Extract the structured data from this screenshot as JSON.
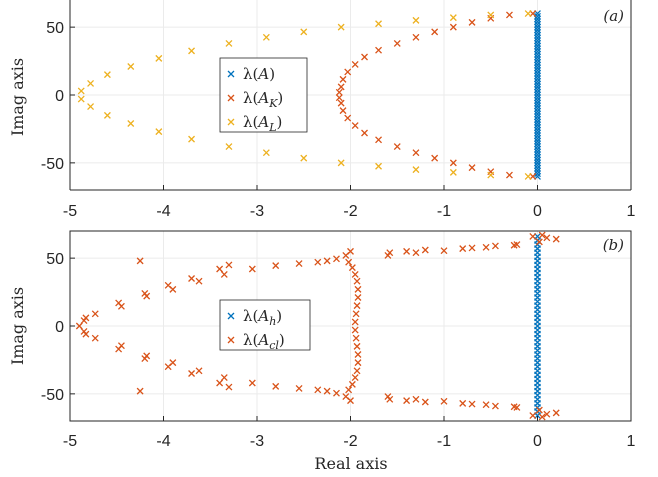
{
  "chart_data": [
    {
      "type": "scatter",
      "panel_label": "(a)",
      "xlabel": "",
      "ylabel": "Imag axis",
      "xlim": [
        -5,
        1
      ],
      "ylim": [
        -70,
        70
      ],
      "xticks": [
        -5,
        -4,
        -3,
        -2,
        -1,
        0,
        1
      ],
      "yticks": [
        -50,
        0,
        50
      ],
      "xtick_labels": [
        "-5",
        "-4",
        "-3",
        "-2",
        "-1",
        "0",
        "1"
      ],
      "ytick_labels": [
        "-50",
        "0",
        "50"
      ],
      "grid": true,
      "legend_position": "center-left",
      "marker": "x",
      "series": [
        {
          "name": "λ(A)",
          "color": "#0072BD",
          "points": [
            [
              0,
              -60
            ],
            [
              0,
              -58
            ],
            [
              0,
              -56
            ],
            [
              0,
              -54
            ],
            [
              0,
              -52
            ],
            [
              0,
              -50
            ],
            [
              0,
              -48
            ],
            [
              0,
              -46
            ],
            [
              0,
              -44
            ],
            [
              0,
              -42
            ],
            [
              0,
              -40
            ],
            [
              0,
              -38
            ],
            [
              0,
              -36
            ],
            [
              0,
              -34
            ],
            [
              0,
              -32
            ],
            [
              0,
              -30
            ],
            [
              0,
              -28
            ],
            [
              0,
              -26
            ],
            [
              0,
              -24
            ],
            [
              0,
              -22
            ],
            [
              0,
              -20
            ],
            [
              0,
              -18
            ],
            [
              0,
              -16
            ],
            [
              0,
              -14
            ],
            [
              0,
              -12
            ],
            [
              0,
              -10
            ],
            [
              0,
              -8
            ],
            [
              0,
              -6
            ],
            [
              0,
              -4
            ],
            [
              0,
              -2
            ],
            [
              0,
              0
            ],
            [
              0,
              2
            ],
            [
              0,
              4
            ],
            [
              0,
              6
            ],
            [
              0,
              8
            ],
            [
              0,
              10
            ],
            [
              0,
              12
            ],
            [
              0,
              14
            ],
            [
              0,
              16
            ],
            [
              0,
              18
            ],
            [
              0,
              20
            ],
            [
              0,
              22
            ],
            [
              0,
              24
            ],
            [
              0,
              26
            ],
            [
              0,
              28
            ],
            [
              0,
              30
            ],
            [
              0,
              32
            ],
            [
              0,
              34
            ],
            [
              0,
              36
            ],
            [
              0,
              38
            ],
            [
              0,
              40
            ],
            [
              0,
              42
            ],
            [
              0,
              44
            ],
            [
              0,
              46
            ],
            [
              0,
              48
            ],
            [
              0,
              50
            ],
            [
              0,
              52
            ],
            [
              0,
              54
            ],
            [
              0,
              56
            ],
            [
              0,
              58
            ],
            [
              0,
              60
            ]
          ]
        },
        {
          "name": "λ(A_K)",
          "color": "#D95319",
          "points": [
            [
              -0.05,
              60
            ],
            [
              -0.3,
              59
            ],
            [
              -0.5,
              56.5
            ],
            [
              -0.7,
              53.5
            ],
            [
              -0.9,
              50
            ],
            [
              -1.1,
              46.5
            ],
            [
              -1.3,
              42.5
            ],
            [
              -1.5,
              38
            ],
            [
              -1.7,
              33
            ],
            [
              -1.85,
              28
            ],
            [
              -1.95,
              22.5
            ],
            [
              -2.03,
              17
            ],
            [
              -2.08,
              11.5
            ],
            [
              -2.1,
              6
            ],
            [
              -2.12,
              2
            ],
            [
              -2.12,
              -2
            ],
            [
              -2.1,
              -6
            ],
            [
              -2.08,
              -11.5
            ],
            [
              -2.03,
              -17
            ],
            [
              -1.95,
              -22.5
            ],
            [
              -1.85,
              -28
            ],
            [
              -1.7,
              -33
            ],
            [
              -1.5,
              -38
            ],
            [
              -1.3,
              -42.5
            ],
            [
              -1.1,
              -46.5
            ],
            [
              -0.9,
              -50
            ],
            [
              -0.7,
              -53.5
            ],
            [
              -0.5,
              -56.5
            ],
            [
              -0.3,
              -59
            ],
            [
              -0.05,
              -60
            ]
          ]
        },
        {
          "name": "λ(A_L)",
          "color": "#EDB120",
          "points": [
            [
              -0.1,
              60
            ],
            [
              -0.5,
              59
            ],
            [
              -0.9,
              57
            ],
            [
              -1.3,
              55
            ],
            [
              -1.7,
              52.5
            ],
            [
              -2.1,
              50
            ],
            [
              -2.5,
              46.5
            ],
            [
              -2.9,
              42.5
            ],
            [
              -3.3,
              38
            ],
            [
              -3.7,
              32.5
            ],
            [
              -4.05,
              27
            ],
            [
              -4.35,
              21
            ],
            [
              -4.6,
              15
            ],
            [
              -4.78,
              8.5
            ],
            [
              -4.88,
              3
            ],
            [
              -4.88,
              -3
            ],
            [
              -4.78,
              -8.5
            ],
            [
              -4.6,
              -15
            ],
            [
              -4.35,
              -21
            ],
            [
              -4.05,
              -27
            ],
            [
              -3.7,
              -32.5
            ],
            [
              -3.3,
              -38
            ],
            [
              -2.9,
              -42.5
            ],
            [
              -2.5,
              -46.5
            ],
            [
              -2.1,
              -50
            ],
            [
              -1.7,
              -52.5
            ],
            [
              -1.3,
              -55
            ],
            [
              -0.9,
              -57
            ],
            [
              -0.5,
              -59
            ],
            [
              -0.1,
              -60
            ]
          ]
        }
      ]
    },
    {
      "type": "scatter",
      "panel_label": "(b)",
      "xlabel": "Real axis",
      "ylabel": "Imag axis",
      "xlim": [
        -5,
        1
      ],
      "ylim": [
        -70,
        70
      ],
      "xticks": [
        -5,
        -4,
        -3,
        -2,
        -1,
        0,
        1
      ],
      "yticks": [
        -50,
        0,
        50
      ],
      "xtick_labels": [
        "-5",
        "-4",
        "-3",
        "-2",
        "-1",
        "0",
        "1"
      ],
      "ytick_labels": [
        "-50",
        "0",
        "50"
      ],
      "grid": true,
      "legend_position": "center-left",
      "marker": "x",
      "series": [
        {
          "name": "λ(A_h)",
          "color": "#0072BD",
          "points": [
            [
              0,
              -66
            ],
            [
              0,
              -63
            ],
            [
              0,
              -60
            ],
            [
              0,
              -57
            ],
            [
              0,
              -54
            ],
            [
              0,
              -51
            ],
            [
              0,
              -48
            ],
            [
              0,
              -45
            ],
            [
              0,
              -42
            ],
            [
              0,
              -39
            ],
            [
              0,
              -36
            ],
            [
              0,
              -33
            ],
            [
              0,
              -30
            ],
            [
              0,
              -27
            ],
            [
              0,
              -24
            ],
            [
              0,
              -21
            ],
            [
              0,
              -18
            ],
            [
              0,
              -15
            ],
            [
              0,
              -12
            ],
            [
              0,
              -9
            ],
            [
              0,
              -6
            ],
            [
              0,
              -3
            ],
            [
              0,
              0
            ],
            [
              0,
              3
            ],
            [
              0,
              6
            ],
            [
              0,
              9
            ],
            [
              0,
              12
            ],
            [
              0,
              15
            ],
            [
              0,
              18
            ],
            [
              0,
              21
            ],
            [
              0,
              24
            ],
            [
              0,
              27
            ],
            [
              0,
              30
            ],
            [
              0,
              33
            ],
            [
              0,
              36
            ],
            [
              0,
              39
            ],
            [
              0,
              42
            ],
            [
              0,
              45
            ],
            [
              0,
              48
            ],
            [
              0,
              51
            ],
            [
              0,
              54
            ],
            [
              0,
              57
            ],
            [
              0,
              60
            ],
            [
              0,
              63
            ],
            [
              0,
              66
            ]
          ]
        },
        {
          "name": "λ(A_cl)",
          "color": "#D95319",
          "points": [
            [
              -4.9,
              0
            ],
            [
              -4.85,
              4
            ],
            [
              -4.83,
              6
            ],
            [
              -4.85,
              -4
            ],
            [
              -4.83,
              -6
            ],
            [
              -4.73,
              9
            ],
            [
              -4.73,
              -9
            ],
            [
              -4.48,
              17
            ],
            [
              -4.45,
              14.5
            ],
            [
              -4.48,
              -17
            ],
            [
              -4.45,
              -14.5
            ],
            [
              -4.2,
              24
            ],
            [
              -4.18,
              22
            ],
            [
              -4.2,
              -24
            ],
            [
              -4.18,
              -22
            ],
            [
              -4.25,
              48
            ],
            [
              -4.25,
              -48
            ],
            [
              -3.95,
              30
            ],
            [
              -3.9,
              27
            ],
            [
              -3.95,
              -30
            ],
            [
              -3.9,
              -27
            ],
            [
              -3.7,
              35
            ],
            [
              -3.62,
              33
            ],
            [
              -3.7,
              -35
            ],
            [
              -3.62,
              -33
            ],
            [
              -3.4,
              42
            ],
            [
              -3.35,
              38
            ],
            [
              -3.4,
              -42
            ],
            [
              -3.35,
              -38
            ],
            [
              -3.3,
              45
            ],
            [
              -3.3,
              -45
            ],
            [
              -3.05,
              42
            ],
            [
              -3.05,
              -42
            ],
            [
              -2.8,
              44.5
            ],
            [
              -2.8,
              -44.5
            ],
            [
              -2.55,
              46
            ],
            [
              -2.55,
              -46
            ],
            [
              -2.35,
              47
            ],
            [
              -2.35,
              -47
            ],
            [
              -2.25,
              48
            ],
            [
              -2.25,
              -48
            ],
            [
              -2.15,
              49.5
            ],
            [
              -2.15,
              -49.5
            ],
            [
              -2.02,
              47
            ],
            [
              -2.02,
              -47
            ],
            [
              -1.98,
              43
            ],
            [
              -1.98,
              -43
            ],
            [
              -1.95,
              38
            ],
            [
              -1.95,
              -38
            ],
            [
              -1.93,
              33
            ],
            [
              -1.93,
              -33
            ],
            [
              -1.92,
              27
            ],
            [
              -1.92,
              -27
            ],
            [
              -1.92,
              21
            ],
            [
              -1.92,
              -21
            ],
            [
              -1.93,
              15
            ],
            [
              -1.93,
              -15
            ],
            [
              -1.94,
              9
            ],
            [
              -1.94,
              -9
            ],
            [
              -1.95,
              3
            ],
            [
              -1.95,
              -3
            ],
            [
              -2.0,
              55
            ],
            [
              -2.0,
              -55
            ],
            [
              -2.05,
              52
            ],
            [
              -2.05,
              -52
            ],
            [
              -1.6,
              52
            ],
            [
              -1.6,
              -52
            ],
            [
              -1.58,
              54
            ],
            [
              -1.58,
              -54
            ],
            [
              -1.4,
              55
            ],
            [
              -1.4,
              -55
            ],
            [
              -1.3,
              54
            ],
            [
              -1.3,
              -54
            ],
            [
              -1.2,
              56
            ],
            [
              -1.2,
              -56
            ],
            [
              -1.0,
              55.5
            ],
            [
              -1.0,
              -55.5
            ],
            [
              -0.8,
              57
            ],
            [
              -0.8,
              -57
            ],
            [
              -0.7,
              57.5
            ],
            [
              -0.7,
              -57.5
            ],
            [
              -0.55,
              58
            ],
            [
              -0.55,
              -58
            ],
            [
              -0.45,
              59
            ],
            [
              -0.45,
              -59
            ],
            [
              -0.25,
              59.5
            ],
            [
              -0.25,
              -59.5
            ],
            [
              -0.22,
              60
            ],
            [
              -0.22,
              -60
            ],
            [
              -0.05,
              66
            ],
            [
              -0.05,
              -66
            ],
            [
              0.05,
              67
            ],
            [
              0.05,
              -67
            ],
            [
              0.1,
              65
            ],
            [
              0.1,
              -65
            ],
            [
              0.2,
              64
            ],
            [
              0.2,
              -64
            ],
            [
              0.02,
              62
            ],
            [
              0.02,
              -62
            ]
          ]
        }
      ]
    }
  ],
  "legend_labels": {
    "a": [
      {
        "sym": "λ(",
        "main": "A",
        "sub": "",
        "close": ")"
      },
      {
        "sym": "λ(",
        "main": "A",
        "sub": "K",
        "close": ")"
      },
      {
        "sym": "λ(",
        "main": "A",
        "sub": "L",
        "close": ")"
      }
    ],
    "b": [
      {
        "sym": "λ(",
        "main": "A",
        "sub": "h",
        "close": ")"
      },
      {
        "sym": "λ(",
        "main": "A",
        "sub": "cl",
        "close": ")"
      }
    ]
  }
}
